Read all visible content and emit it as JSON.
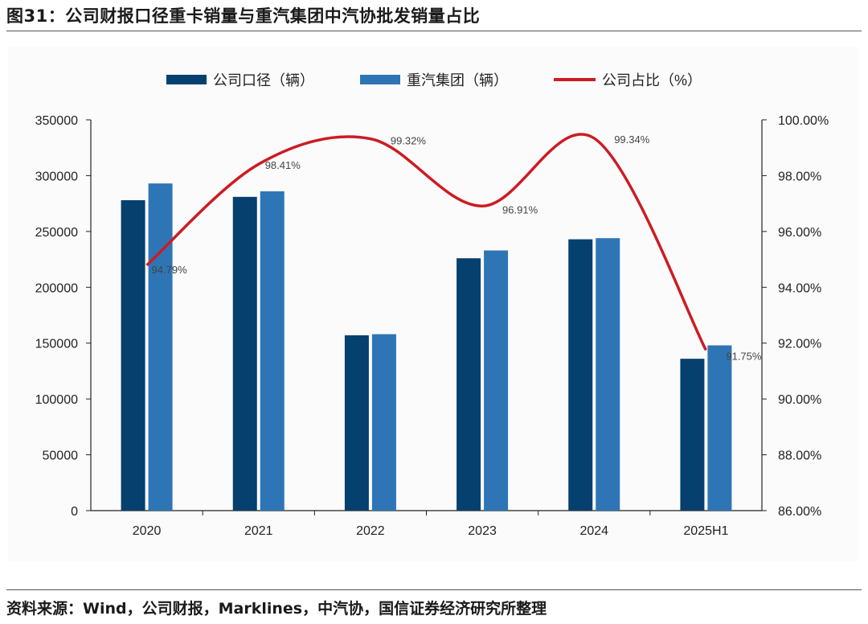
{
  "figure": {
    "title": "图31：公司财报口径重卡销量与重汽集团中汽协批发销量占比",
    "source": "资料来源：Wind，公司财报，Marklines，中汽协，国信证券经济研究所整理"
  },
  "colors": {
    "series1": "#05406e",
    "series2": "#2e75b6",
    "line": "#cc1c24",
    "axis": "#222222"
  },
  "chart_data": {
    "type": "bar",
    "categories": [
      "2020",
      "2021",
      "2022",
      "2023",
      "2024",
      "2025H1"
    ],
    "series": [
      {
        "name": "公司口径（辆）",
        "type": "bar",
        "axis": "left",
        "values": [
          278000,
          281000,
          157000,
          226000,
          243000,
          136000
        ]
      },
      {
        "name": "重汽集团（辆）",
        "type": "bar",
        "axis": "left",
        "values": [
          293000,
          286000,
          158000,
          233000,
          244000,
          148000
        ]
      },
      {
        "name": "公司占比（%）",
        "type": "line",
        "axis": "right",
        "smooth": true,
        "values": [
          94.79,
          98.41,
          99.32,
          96.91,
          99.34,
          91.75
        ],
        "labels": [
          "94.79%",
          "98.41%",
          "99.32%",
          "96.91%",
          "99.34%",
          "91.75%"
        ]
      }
    ],
    "y_left": {
      "min": 0,
      "max": 350000,
      "step": 50000,
      "ticks": [
        "0",
        "50000",
        "100000",
        "150000",
        "200000",
        "250000",
        "300000",
        "350000"
      ]
    },
    "y_right": {
      "min": 86,
      "max": 100,
      "step": 2,
      "ticks": [
        "86.00%",
        "88.00%",
        "90.00%",
        "92.00%",
        "94.00%",
        "96.00%",
        "98.00%",
        "100.00%"
      ]
    },
    "legend_position": "top-center",
    "grid": false
  }
}
